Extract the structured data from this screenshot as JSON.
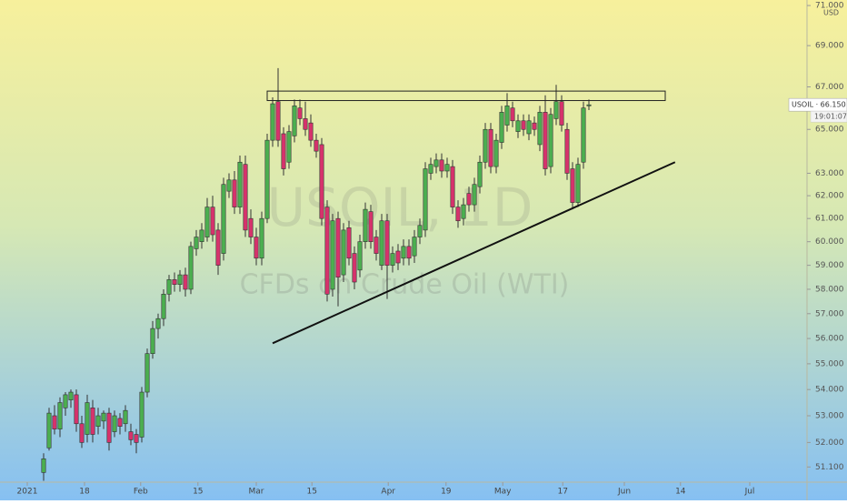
{
  "chart_data": {
    "type": "candlestick",
    "watermark": "USOIL, 1D",
    "subtitle": "CFDs on Crude Oil (WTI)",
    "currency": "USD",
    "price_label": "USOIL · 66.150",
    "countdown": "19:01:07",
    "up_color": "#4caf50",
    "down_color": "#d6336c",
    "log_scale": true,
    "ylim": [
      50.55,
      71.28
    ],
    "yticks": [
      {
        "value": 71,
        "label": "71.000"
      },
      {
        "value": 69,
        "label": "69.000"
      },
      {
        "value": 67,
        "label": "67.000"
      },
      {
        "value": 65,
        "label": "65.000"
      },
      {
        "value": 63,
        "label": "63.000"
      },
      {
        "value": 62,
        "label": "62.000"
      },
      {
        "value": 61,
        "label": "61.000"
      },
      {
        "value": 60,
        "label": "60.000"
      },
      {
        "value": 59,
        "label": "59.000"
      },
      {
        "value": 58,
        "label": "58.000"
      },
      {
        "value": 57,
        "label": "57.000"
      },
      {
        "value": 56,
        "label": "56.000"
      },
      {
        "value": 55,
        "label": "55.000"
      },
      {
        "value": 54,
        "label": "54.000"
      },
      {
        "value": 53,
        "label": "53.000"
      },
      {
        "value": 52,
        "label": "52.000"
      },
      {
        "value": 51.1,
        "label": "51.100"
      }
    ],
    "xlim": [
      -8,
      140
    ],
    "xticks": [
      {
        "value": -3,
        "label": "2021"
      },
      {
        "value": 7.5,
        "label": "18"
      },
      {
        "value": 17.8,
        "label": "Feb"
      },
      {
        "value": 28.3,
        "label": "15"
      },
      {
        "value": 39,
        "label": "Mar"
      },
      {
        "value": 49.2,
        "label": "15"
      },
      {
        "value": 63.2,
        "label": "Apr"
      },
      {
        "value": 73.8,
        "label": "19"
      },
      {
        "value": 84.2,
        "label": "May"
      },
      {
        "value": 95.2,
        "label": "17"
      },
      {
        "value": 106.5,
        "label": "Jun"
      },
      {
        "value": 116.8,
        "label": "14"
      },
      {
        "value": 129.5,
        "label": "Jul"
      }
    ],
    "ohlc": [
      [
        50.9,
        51.6,
        50.6,
        51.4
      ],
      [
        51.8,
        53.3,
        51.7,
        53.1
      ],
      [
        53.0,
        53.4,
        52.3,
        52.5
      ],
      [
        52.5,
        53.7,
        52.2,
        53.5
      ],
      [
        53.3,
        53.9,
        53.0,
        53.8
      ],
      [
        53.6,
        54.0,
        53.3,
        53.9
      ],
      [
        53.8,
        54.0,
        52.4,
        52.7
      ],
      [
        52.7,
        53.0,
        51.8,
        52.0
      ],
      [
        52.3,
        53.8,
        52.0,
        53.5
      ],
      [
        53.3,
        53.6,
        52.0,
        52.3
      ],
      [
        52.6,
        53.3,
        52.3,
        53.0
      ],
      [
        52.8,
        53.2,
        52.5,
        53.1
      ],
      [
        53.1,
        53.3,
        51.7,
        52.0
      ],
      [
        52.4,
        53.2,
        52.2,
        53.0
      ],
      [
        52.9,
        53.1,
        52.3,
        52.6
      ],
      [
        52.7,
        53.4,
        52.4,
        53.2
      ],
      [
        52.4,
        52.7,
        51.9,
        52.1
      ],
      [
        52.3,
        52.5,
        51.6,
        52.0
      ],
      [
        52.2,
        54.1,
        52.0,
        53.9
      ],
      [
        53.9,
        55.6,
        53.7,
        55.4
      ],
      [
        55.4,
        56.7,
        55.2,
        56.4
      ],
      [
        56.4,
        57.0,
        56.0,
        56.8
      ],
      [
        56.8,
        58.0,
        56.5,
        57.8
      ],
      [
        57.8,
        58.6,
        57.5,
        58.4
      ],
      [
        58.4,
        58.7,
        57.9,
        58.2
      ],
      [
        58.2,
        58.8,
        57.9,
        58.6
      ],
      [
        58.6,
        58.9,
        57.7,
        58.0
      ],
      [
        58.0,
        60.0,
        57.8,
        59.8
      ],
      [
        59.7,
        60.5,
        59.4,
        60.2
      ],
      [
        60.0,
        60.8,
        59.7,
        60.5
      ],
      [
        60.2,
        61.9,
        60.0,
        61.5
      ],
      [
        61.5,
        62.0,
        60.0,
        60.3
      ],
      [
        60.5,
        60.8,
        58.6,
        59.0
      ],
      [
        59.5,
        62.8,
        59.2,
        62.5
      ],
      [
        62.2,
        63.0,
        61.9,
        62.7
      ],
      [
        62.7,
        63.1,
        61.2,
        61.5
      ],
      [
        61.5,
        63.8,
        61.2,
        63.5
      ],
      [
        63.4,
        63.8,
        60.2,
        60.5
      ],
      [
        61.0,
        61.4,
        59.9,
        60.2
      ],
      [
        60.2,
        60.6,
        59.0,
        59.3
      ],
      [
        59.3,
        61.3,
        59.0,
        61.0
      ],
      [
        61.0,
        64.8,
        60.8,
        64.5
      ],
      [
        64.5,
        66.5,
        64.2,
        66.2
      ],
      [
        66.3,
        67.9,
        64.2,
        64.5
      ],
      [
        64.8,
        65.1,
        62.9,
        63.2
      ],
      [
        63.5,
        65.2,
        63.2,
        64.9
      ],
      [
        64.7,
        66.4,
        64.4,
        66.1
      ],
      [
        66.0,
        66.4,
        65.2,
        65.5
      ],
      [
        65.5,
        66.3,
        64.7,
        65.0
      ],
      [
        65.3,
        65.7,
        64.2,
        64.5
      ],
      [
        64.5,
        64.8,
        63.7,
        64.0
      ],
      [
        64.3,
        64.6,
        60.7,
        61.0
      ],
      [
        61.5,
        61.8,
        57.5,
        57.8
      ],
      [
        58.0,
        61.2,
        57.7,
        60.9
      ],
      [
        61.0,
        61.3,
        57.3,
        58.5
      ],
      [
        58.6,
        60.8,
        58.3,
        60.5
      ],
      [
        60.6,
        60.9,
        59.0,
        59.3
      ],
      [
        59.5,
        59.8,
        58.0,
        58.3
      ],
      [
        58.8,
        60.3,
        58.5,
        60.0
      ],
      [
        60.0,
        61.7,
        59.7,
        61.4
      ],
      [
        61.3,
        61.6,
        59.7,
        60.0
      ],
      [
        60.2,
        60.5,
        59.2,
        59.5
      ],
      [
        59.0,
        61.2,
        58.8,
        60.9
      ],
      [
        60.9,
        61.2,
        57.6,
        59.0
      ],
      [
        59.0,
        59.8,
        58.7,
        59.5
      ],
      [
        59.6,
        59.9,
        58.8,
        59.1
      ],
      [
        59.3,
        60.1,
        59.0,
        59.8
      ],
      [
        59.8,
        60.1,
        59.0,
        59.3
      ],
      [
        59.4,
        60.5,
        59.1,
        60.2
      ],
      [
        60.2,
        61.0,
        59.9,
        60.7
      ],
      [
        60.5,
        63.5,
        60.2,
        63.2
      ],
      [
        63.0,
        63.7,
        62.7,
        63.4
      ],
      [
        63.3,
        63.9,
        63.0,
        63.6
      ],
      [
        63.6,
        63.9,
        62.8,
        63.1
      ],
      [
        63.1,
        63.7,
        62.8,
        63.4
      ],
      [
        63.3,
        63.6,
        61.2,
        61.5
      ],
      [
        61.5,
        61.8,
        60.6,
        60.9
      ],
      [
        61.0,
        61.9,
        60.7,
        61.6
      ],
      [
        62.1,
        62.4,
        61.3,
        61.6
      ],
      [
        61.6,
        62.8,
        61.3,
        62.5
      ],
      [
        62.4,
        63.8,
        62.1,
        63.5
      ],
      [
        63.5,
        65.3,
        63.2,
        65.0
      ],
      [
        65.0,
        65.3,
        63.0,
        63.3
      ],
      [
        63.3,
        64.8,
        63.0,
        64.5
      ],
      [
        64.4,
        66.1,
        64.1,
        65.8
      ],
      [
        65.2,
        66.7,
        64.9,
        66.1
      ],
      [
        66.0,
        66.3,
        65.1,
        65.4
      ],
      [
        64.9,
        65.7,
        64.6,
        65.4
      ],
      [
        65.4,
        65.7,
        64.7,
        65.0
      ],
      [
        64.8,
        65.7,
        64.5,
        65.4
      ],
      [
        65.3,
        65.6,
        64.7,
        65.0
      ],
      [
        64.3,
        66.1,
        64.0,
        65.8
      ],
      [
        65.8,
        66.6,
        62.9,
        63.2
      ],
      [
        63.3,
        66.0,
        63.0,
        65.7
      ],
      [
        65.5,
        67.1,
        65.2,
        66.3
      ],
      [
        66.3,
        66.6,
        64.9,
        65.2
      ],
      [
        65.0,
        65.3,
        62.7,
        63.0
      ],
      [
        63.2,
        63.5,
        61.4,
        61.7
      ],
      [
        61.7,
        63.7,
        61.5,
        63.4
      ],
      [
        63.5,
        66.3,
        63.2,
        66.0
      ],
      [
        66.1,
        66.4,
        65.9,
        66.15
      ]
    ],
    "resistance_zone": {
      "x": [
        41,
        114
      ],
      "y": [
        66.35,
        66.8
      ]
    },
    "trendline": {
      "x": [
        42,
        115.8
      ],
      "y": [
        55.81,
        63.5
      ]
    }
  }
}
